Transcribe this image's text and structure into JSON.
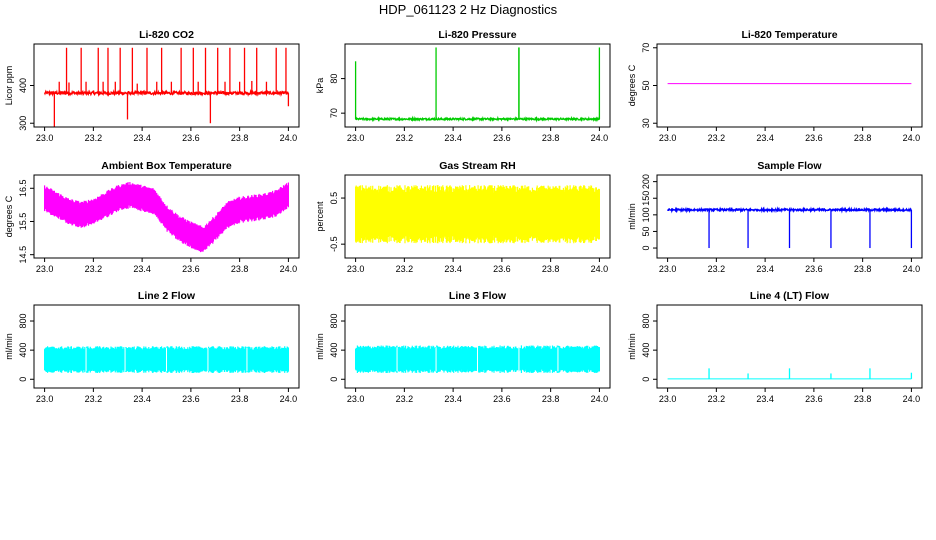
{
  "figure_title": "HDP_061123  2 Hz Diagnostics",
  "chart_data": [
    {
      "id": "co2",
      "type": "line",
      "title": "Li-820 CO2",
      "ylabel": "Licor ppm",
      "color": "#ff0000",
      "xlim": [
        23.0,
        24.0
      ],
      "ylim": [
        290,
        510
      ],
      "xticks": [
        "23.0",
        "23.2",
        "23.4",
        "23.6",
        "23.8",
        "24.0"
      ],
      "yticks": [
        300,
        400
      ],
      "baseline": 380,
      "noise": 4,
      "spikes": [
        {
          "x": 23.04,
          "y": 290
        },
        {
          "x": 23.06,
          "y": 410
        },
        {
          "x": 23.09,
          "y": 500
        },
        {
          "x": 23.1,
          "y": 408
        },
        {
          "x": 23.15,
          "y": 500
        },
        {
          "x": 23.17,
          "y": 410
        },
        {
          "x": 23.22,
          "y": 500
        },
        {
          "x": 23.24,
          "y": 410
        },
        {
          "x": 23.26,
          "y": 500
        },
        {
          "x": 23.29,
          "y": 410
        },
        {
          "x": 23.31,
          "y": 500
        },
        {
          "x": 23.34,
          "y": 310
        },
        {
          "x": 23.36,
          "y": 500
        },
        {
          "x": 23.38,
          "y": 405
        },
        {
          "x": 23.42,
          "y": 500
        },
        {
          "x": 23.46,
          "y": 410
        },
        {
          "x": 23.48,
          "y": 500
        },
        {
          "x": 23.52,
          "y": 410
        },
        {
          "x": 23.56,
          "y": 500
        },
        {
          "x": 23.61,
          "y": 500
        },
        {
          "x": 23.63,
          "y": 410
        },
        {
          "x": 23.66,
          "y": 500
        },
        {
          "x": 23.68,
          "y": 300
        },
        {
          "x": 23.71,
          "y": 500
        },
        {
          "x": 23.74,
          "y": 410
        },
        {
          "x": 23.76,
          "y": 500
        },
        {
          "x": 23.8,
          "y": 410
        },
        {
          "x": 23.82,
          "y": 500
        },
        {
          "x": 23.85,
          "y": 412
        },
        {
          "x": 23.87,
          "y": 500
        },
        {
          "x": 23.91,
          "y": 410
        },
        {
          "x": 23.95,
          "y": 500
        },
        {
          "x": 23.99,
          "y": 500
        },
        {
          "x": 24.0,
          "y": 345
        }
      ]
    },
    {
      "id": "pressure",
      "type": "line",
      "title": "Li-820 Pressure",
      "ylabel": "kPa",
      "color": "#00cc00",
      "xlim": [
        23.0,
        24.0
      ],
      "ylim": [
        66,
        90
      ],
      "xticks": [
        "23.0",
        "23.2",
        "23.4",
        "23.6",
        "23.8",
        "24.0"
      ],
      "yticks": [
        70,
        80
      ],
      "baseline": 68.3,
      "noise": 0.25,
      "spikes": [
        {
          "x": 23.0,
          "y": 85
        },
        {
          "x": 23.33,
          "y": 89
        },
        {
          "x": 23.67,
          "y": 89
        },
        {
          "x": 23.67,
          "y": 89
        },
        {
          "x": 24.0,
          "y": 89
        }
      ]
    },
    {
      "id": "temp820",
      "type": "line",
      "title": "Li-820 Temperature",
      "ylabel": "degrees C",
      "color": "#ff00ff",
      "xlim": [
        23.0,
        24.0
      ],
      "ylim": [
        28,
        72
      ],
      "xticks": [
        "23.0",
        "23.2",
        "23.4",
        "23.6",
        "23.8",
        "24.0"
      ],
      "yticks": [
        30,
        50,
        70
      ],
      "baseline": 51,
      "noise": 0,
      "spikes": []
    },
    {
      "id": "ambient",
      "type": "band",
      "title": "Ambient Box Temperature",
      "ylabel": "degrees C",
      "color": "#ff00ff",
      "xlim": [
        23.0,
        24.0
      ],
      "ylim": [
        14.4,
        16.9
      ],
      "xticks": [
        "23.0",
        "23.2",
        "23.4",
        "23.6",
        "23.8",
        "24.0"
      ],
      "yticks": [
        14.5,
        15.5,
        16.5
      ],
      "yticklabels": [
        "14.5",
        "15.5",
        "16.5"
      ],
      "center_x": [
        23.0,
        23.05,
        23.1,
        23.15,
        23.2,
        23.25,
        23.3,
        23.35,
        23.4,
        23.45,
        23.5,
        23.55,
        23.6,
        23.65,
        23.7,
        23.75,
        23.8,
        23.85,
        23.9,
        23.95,
        24.0
      ],
      "center_y": [
        16.2,
        16.0,
        15.8,
        15.7,
        15.8,
        16.0,
        16.2,
        16.3,
        16.2,
        16.1,
        15.6,
        15.3,
        15.1,
        14.95,
        15.3,
        15.7,
        15.85,
        15.9,
        15.95,
        16.05,
        16.3
      ],
      "half_width": 0.35
    },
    {
      "id": "rh",
      "type": "band",
      "title": "Gas Stream RH",
      "ylabel": "percent",
      "color": "#ffff00",
      "xlim": [
        23.0,
        24.0
      ],
      "ylim": [
        -0.8,
        1.0
      ],
      "xticks": [
        "23.0",
        "23.2",
        "23.4",
        "23.6",
        "23.8",
        "24.0"
      ],
      "yticks": [
        -0.5,
        0.5
      ],
      "yticklabels": [
        "-0.5",
        "0.5"
      ],
      "center_x": [
        23.0,
        24.0
      ],
      "center_y": [
        0.15,
        0.15
      ],
      "half_width": 0.55
    },
    {
      "id": "sample",
      "type": "line",
      "title": "Sample Flow",
      "ylabel": "ml/min",
      "color": "#0000ff",
      "xlim": [
        23.0,
        24.0
      ],
      "ylim": [
        -30,
        220
      ],
      "xticks": [
        "23.0",
        "23.2",
        "23.4",
        "23.6",
        "23.8",
        "24.0"
      ],
      "yticks": [
        0,
        50,
        100,
        150,
        200
      ],
      "baseline": 115,
      "noise": 3,
      "spikes": [
        {
          "x": 23.17,
          "y": 0
        },
        {
          "x": 23.33,
          "y": 0
        },
        {
          "x": 23.5,
          "y": 0
        },
        {
          "x": 23.67,
          "y": 0
        },
        {
          "x": 23.83,
          "y": 0
        },
        {
          "x": 24.0,
          "y": 0
        }
      ]
    },
    {
      "id": "line2",
      "type": "band",
      "title": "Line 2 Flow",
      "ylabel": "ml/min",
      "color": "#00ffff",
      "xlim": [
        23.0,
        24.0
      ],
      "ylim": [
        -120,
        1020
      ],
      "xticks": [
        "23.0",
        "23.2",
        "23.4",
        "23.6",
        "23.8",
        "24.0"
      ],
      "yticks": [
        0,
        400,
        800
      ],
      "yticklabels": [
        "0",
        "400",
        "800"
      ],
      "center_x": [
        23.0,
        24.0
      ],
      "center_y": [
        270,
        270
      ],
      "half_width": 160,
      "gaps": [
        23.17,
        23.33,
        23.5,
        23.67,
        23.83
      ]
    },
    {
      "id": "line3",
      "type": "band",
      "title": "Line 3 Flow",
      "ylabel": "ml/min",
      "color": "#00ffff",
      "xlim": [
        23.0,
        24.0
      ],
      "ylim": [
        -120,
        1020
      ],
      "xticks": [
        "23.0",
        "23.2",
        "23.4",
        "23.6",
        "23.8",
        "24.0"
      ],
      "yticks": [
        0,
        400,
        800
      ],
      "yticklabels": [
        "0",
        "400",
        "800"
      ],
      "center_x": [
        23.0,
        24.0
      ],
      "center_y": [
        275,
        275
      ],
      "half_width": 165,
      "gaps": [
        23.17,
        23.33,
        23.5,
        23.67,
        23.83
      ]
    },
    {
      "id": "line4",
      "type": "line",
      "title": "Line 4 (LT) Flow",
      "ylabel": "ml/min",
      "color": "#00ffff",
      "xlim": [
        23.0,
        24.0
      ],
      "ylim": [
        -120,
        1020
      ],
      "xticks": [
        "23.0",
        "23.2",
        "23.4",
        "23.6",
        "23.8",
        "24.0"
      ],
      "yticks": [
        0,
        400,
        800
      ],
      "yticklabels": [
        "0",
        "400",
        "800"
      ],
      "baseline": 5,
      "noise": 0,
      "spikes": [
        {
          "x": 23.17,
          "y": 150
        },
        {
          "x": 23.33,
          "y": 80
        },
        {
          "x": 23.5,
          "y": 150
        },
        {
          "x": 23.67,
          "y": 80
        },
        {
          "x": 23.83,
          "y": 150
        },
        {
          "x": 24.0,
          "y": 90
        }
      ]
    }
  ]
}
